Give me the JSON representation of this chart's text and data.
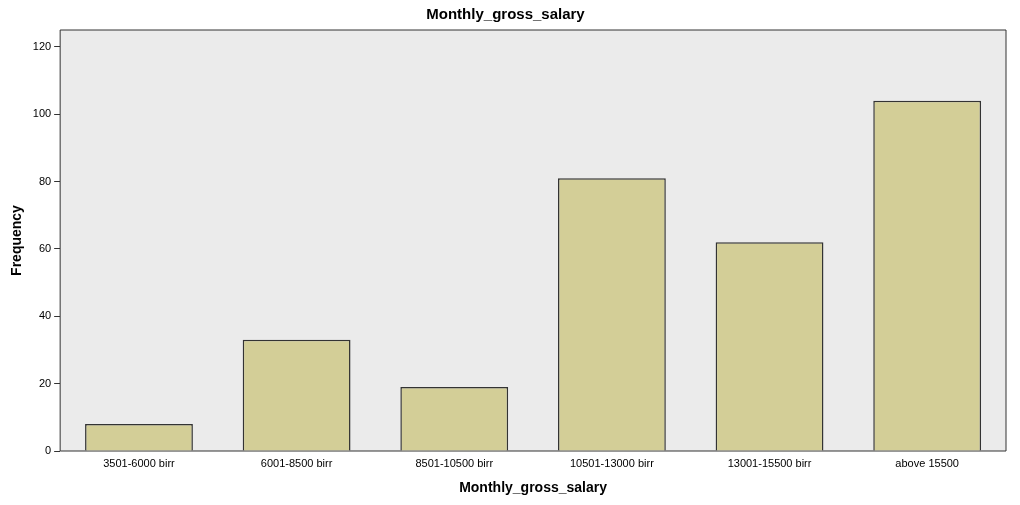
{
  "chart_data": {
    "type": "bar",
    "title": "Monthly_gross_salary",
    "xlabel": "Monthly_gross_salary",
    "ylabel": "Frequency",
    "categories": [
      "3501-6000 birr",
      "6001-8500 birr",
      "8501-10500 birr",
      "10501-13000 birr",
      "13001-15500 birr",
      "above 15500"
    ],
    "values": [
      8,
      33,
      19,
      81,
      62,
      104
    ],
    "color": "#d3ce97",
    "ylim": [
      0,
      125
    ],
    "yticks": [
      0,
      20,
      40,
      60,
      80,
      100,
      120
    ],
    "grid": false
  }
}
